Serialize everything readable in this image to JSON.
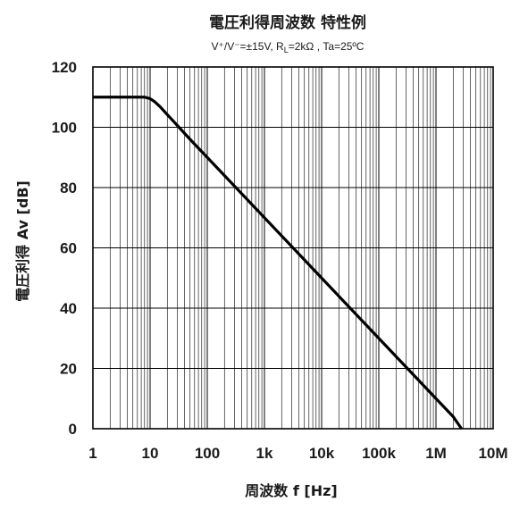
{
  "chart_data": {
    "type": "line",
    "title": "電圧利得周波数 特性例",
    "subtitle": {
      "supply": "V⁺/V⁻=±15V, R",
      "load_sub": "L",
      "rest": "=2kΩ , Ta=25ºC"
    },
    "xlabel": "周波数 f [Hz]",
    "ylabel": "電圧利得 Av [dB]",
    "x_scale": "log",
    "xlim": [
      1,
      10000000
    ],
    "ylim": [
      0,
      120
    ],
    "grid": true,
    "x_ticks": [
      {
        "value": 1,
        "label": "1"
      },
      {
        "value": 10,
        "label": "10"
      },
      {
        "value": 100,
        "label": "100"
      },
      {
        "value": 1000,
        "label": "1k"
      },
      {
        "value": 10000,
        "label": "10k"
      },
      {
        "value": 100000,
        "label": "100k"
      },
      {
        "value": 1000000,
        "label": "1M"
      },
      {
        "value": 10000000,
        "label": "10M"
      }
    ],
    "y_ticks": [
      {
        "value": 0,
        "label": "0"
      },
      {
        "value": 20,
        "label": "20"
      },
      {
        "value": 40,
        "label": "40"
      },
      {
        "value": 60,
        "label": "60"
      },
      {
        "value": 80,
        "label": "80"
      },
      {
        "value": 100,
        "label": "100"
      },
      {
        "value": 120,
        "label": "120"
      }
    ],
    "series": [
      {
        "x": [
          1,
          5,
          8,
          10,
          12,
          15,
          20,
          30,
          50,
          100,
          1000,
          10000,
          100000,
          1000000,
          2000000,
          2800000
        ],
        "y": [
          110,
          110,
          110,
          109.5,
          108.5,
          106.8,
          104.2,
          100.6,
          96,
          90,
          70,
          50,
          30,
          10,
          4,
          0
        ]
      }
    ]
  }
}
